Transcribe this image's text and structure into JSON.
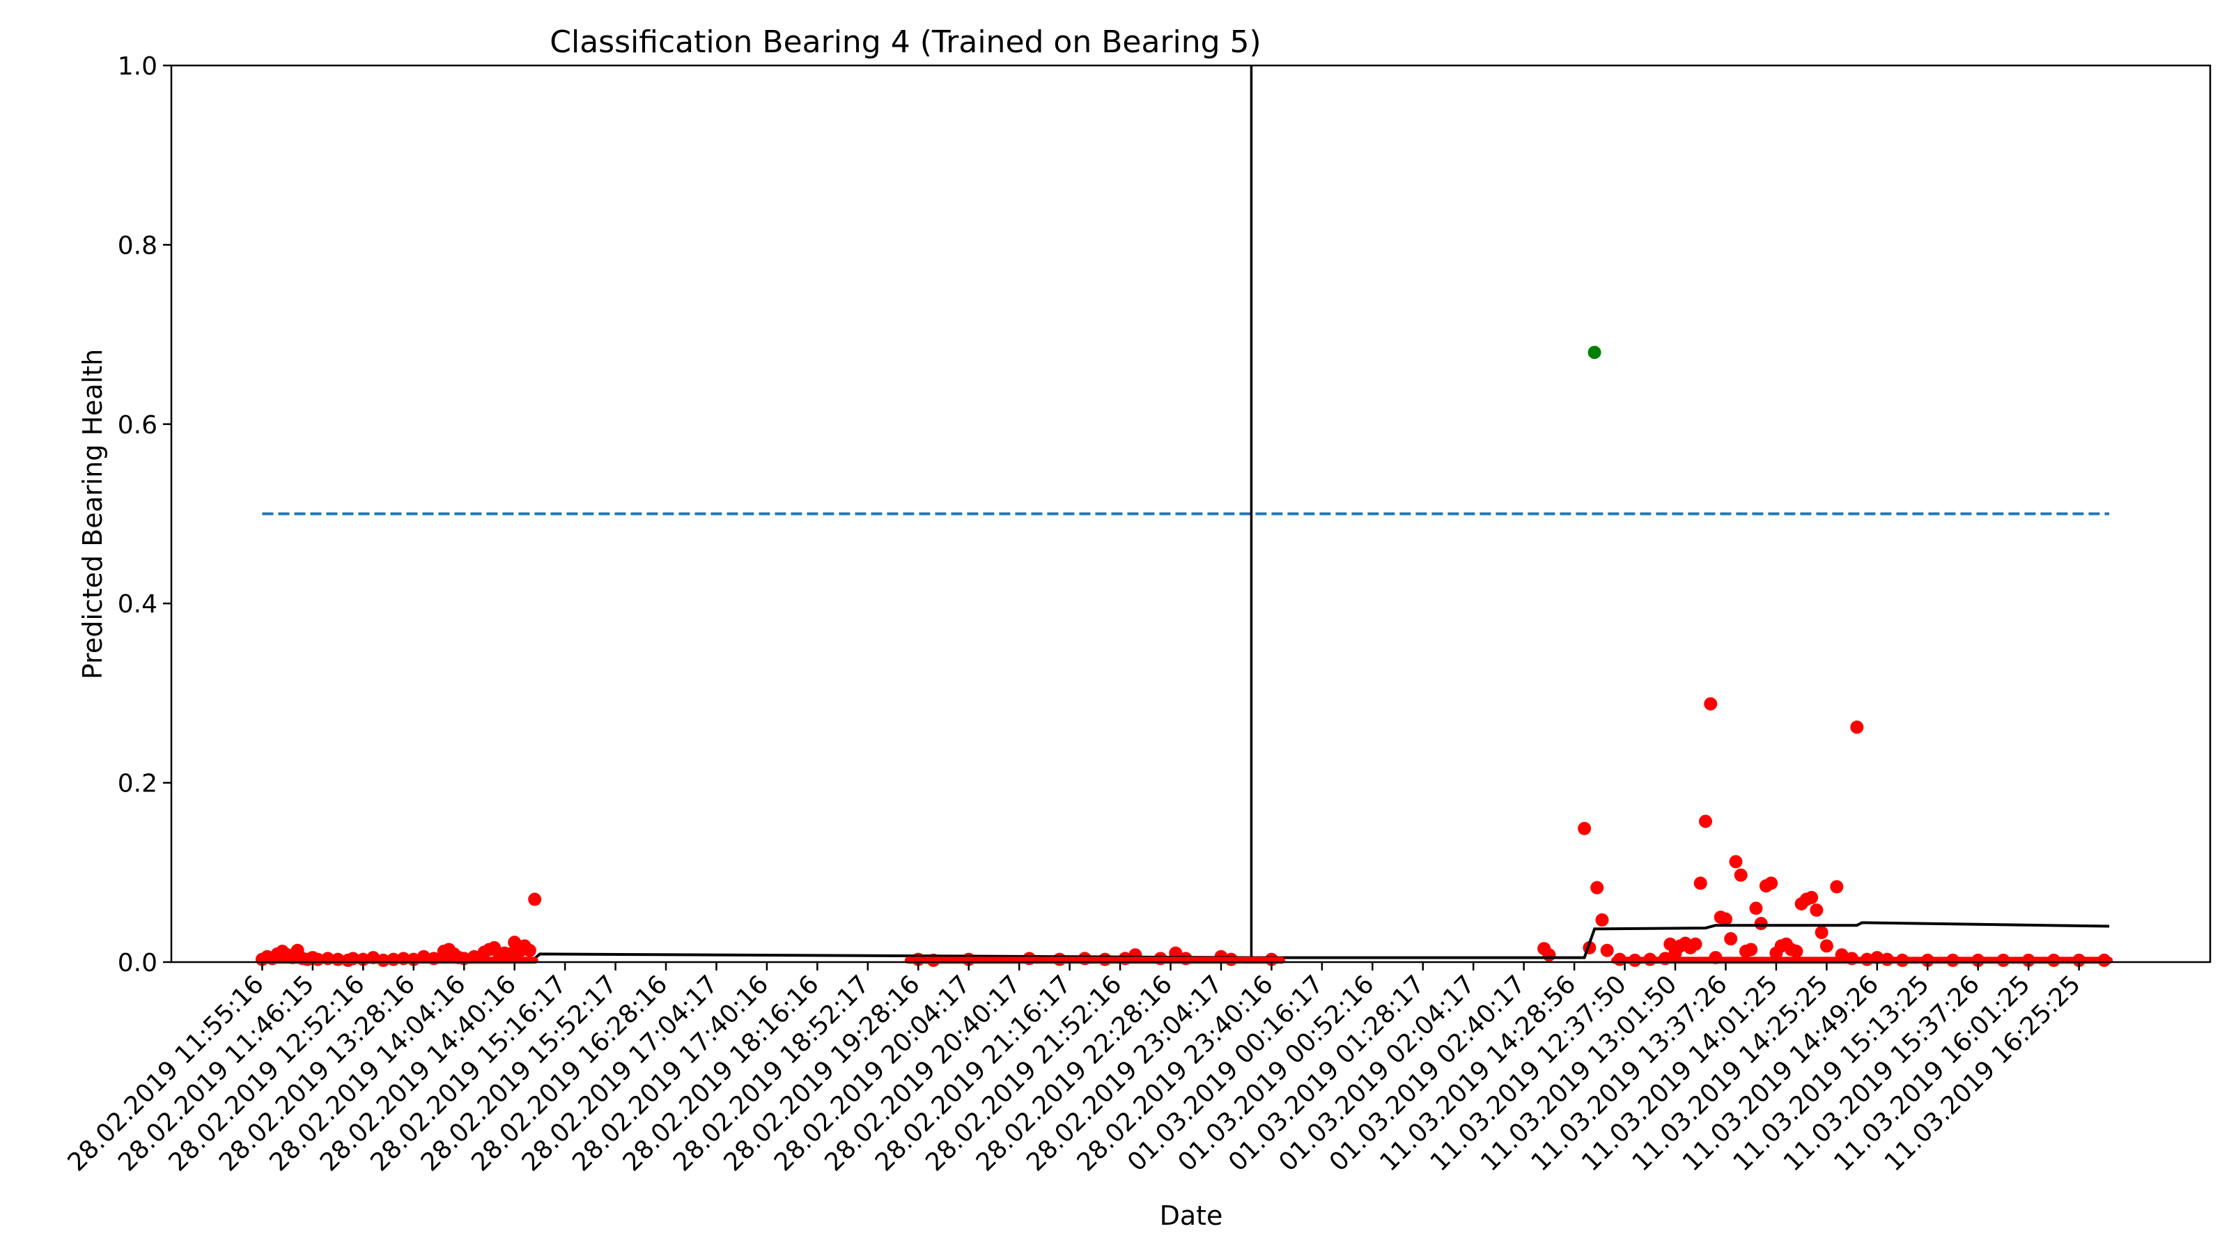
{
  "chart_data": {
    "type": "scatter",
    "title": "Classification Bearing 4 (Trained on Bearing 5)",
    "xlabel": "Date",
    "ylabel": "Predicted Bearing Health",
    "ylim": [
      0.0,
      1.0
    ],
    "y_ticks": [
      "0.0",
      "0.2",
      "0.4",
      "0.6",
      "0.8",
      "1.0"
    ],
    "x_ticks": [
      "28.02.2019 11:55:16",
      "28.02.2019 11:46:15",
      "28.02.2019 12:52:16",
      "28.02.2019 13:28:16",
      "28.02.2019 14:04:16",
      "28.02.2019 14:40:16",
      "28.02.2019 15:16:17",
      "28.02.2019 15:52:17",
      "28.02.2019 16:28:16",
      "28.02.2019 17:04:17",
      "28.02.2019 17:40:16",
      "28.02.2019 18:16:16",
      "28.02.2019 18:52:17",
      "28.02.2019 19:28:16",
      "28.02.2019 20:04:17",
      "28.02.2019 20:40:17",
      "28.02.2019 21:16:17",
      "28.02.2019 21:52:16",
      "28.02.2019 22:28:16",
      "28.02.2019 23:04:17",
      "28.02.2019 23:40:16",
      "01.03.2019 00:16:17",
      "01.03.2019 00:52:16",
      "01.03.2019 01:28:17",
      "01.03.2019 02:04:17",
      "01.03.2019 02:40:17",
      "11.03.2019 14:28:56",
      "11.03.2019 12:37:50",
      "11.03.2019 13:01:50",
      "11.03.2019 13:37:26",
      "11.03.2019 14:01:25",
      "11.03.2019 14:25:25",
      "11.03.2019 14:49:26",
      "11.03.2019 15:13:25",
      "11.03.2019 15:37:26",
      "11.03.2019 16:01:25",
      "11.03.2019 16:25:25"
    ],
    "x_range": [
      -1.8,
      38.6
    ],
    "grid": false,
    "threshold": {
      "y": 0.5,
      "x_start": 0,
      "x_end": 36.6,
      "color": "#1f77b4",
      "style": "dashed"
    },
    "vertical_line": {
      "x": 19.6,
      "color": "#000000"
    },
    "series": [
      {
        "color": "#ff0000",
        "points": [
          [
            0.0,
            0.003
          ],
          [
            0.1,
            0.006
          ],
          [
            0.2,
            0.004
          ],
          [
            0.3,
            0.009
          ],
          [
            0.4,
            0.012
          ],
          [
            0.5,
            0.008
          ],
          [
            0.6,
            0.005
          ],
          [
            0.7,
            0.013
          ],
          [
            0.8,
            0.004
          ],
          [
            0.9,
            0.003
          ],
          [
            1.0,
            0.005
          ],
          [
            1.1,
            0.003
          ],
          [
            1.3,
            0.004
          ],
          [
            1.5,
            0.003
          ],
          [
            1.7,
            0.002
          ],
          [
            1.8,
            0.004
          ],
          [
            2.0,
            0.003
          ],
          [
            2.2,
            0.005
          ],
          [
            2.4,
            0.002
          ],
          [
            2.6,
            0.003
          ],
          [
            2.8,
            0.004
          ],
          [
            3.0,
            0.003
          ],
          [
            3.2,
            0.006
          ],
          [
            3.4,
            0.004
          ],
          [
            3.6,
            0.012
          ],
          [
            3.7,
            0.014
          ],
          [
            3.8,
            0.009
          ],
          [
            3.9,
            0.005
          ],
          [
            4.0,
            0.004
          ],
          [
            4.2,
            0.006
          ],
          [
            4.4,
            0.011
          ],
          [
            4.5,
            0.014
          ],
          [
            4.6,
            0.016
          ],
          [
            4.7,
            0.008
          ],
          [
            4.8,
            0.01
          ],
          [
            4.9,
            0.009
          ],
          [
            5.0,
            0.022
          ],
          [
            5.1,
            0.012
          ],
          [
            5.2,
            0.018
          ],
          [
            5.3,
            0.013
          ],
          [
            5.4,
            0.07
          ],
          [
            13.0,
            0.003
          ],
          [
            13.3,
            0.002
          ],
          [
            14.0,
            0.003
          ],
          [
            15.2,
            0.004
          ],
          [
            15.8,
            0.003
          ],
          [
            16.3,
            0.004
          ],
          [
            16.7,
            0.003
          ],
          [
            17.1,
            0.004
          ],
          [
            17.3,
            0.008
          ],
          [
            17.8,
            0.004
          ],
          [
            18.1,
            0.01
          ],
          [
            18.3,
            0.004
          ],
          [
            19.0,
            0.006
          ],
          [
            19.2,
            0.003
          ],
          [
            20.0,
            0.003
          ],
          [
            25.4,
            0.015
          ],
          [
            25.5,
            0.008
          ],
          [
            26.2,
            0.149
          ],
          [
            26.3,
            0.016
          ],
          [
            26.45,
            0.083
          ],
          [
            26.55,
            0.047
          ],
          [
            26.65,
            0.013
          ],
          [
            26.9,
            0.003
          ],
          [
            27.2,
            0.002
          ],
          [
            27.5,
            0.003
          ],
          [
            27.8,
            0.004
          ],
          [
            28.0,
            0.01
          ],
          [
            27.9,
            0.02
          ],
          [
            28.1,
            0.018
          ],
          [
            28.2,
            0.021
          ],
          [
            28.3,
            0.016
          ],
          [
            28.4,
            0.02
          ],
          [
            28.5,
            0.088
          ],
          [
            28.6,
            0.157
          ],
          [
            28.7,
            0.288
          ],
          [
            28.8,
            0.005
          ],
          [
            28.9,
            0.05
          ],
          [
            29.0,
            0.048
          ],
          [
            29.1,
            0.026
          ],
          [
            29.2,
            0.112
          ],
          [
            29.3,
            0.097
          ],
          [
            29.4,
            0.012
          ],
          [
            29.5,
            0.014
          ],
          [
            29.6,
            0.06
          ],
          [
            29.7,
            0.043
          ],
          [
            29.8,
            0.085
          ],
          [
            29.9,
            0.088
          ],
          [
            30.0,
            0.01
          ],
          [
            30.1,
            0.018
          ],
          [
            30.2,
            0.02
          ],
          [
            30.3,
            0.014
          ],
          [
            30.4,
            0.012
          ],
          [
            30.5,
            0.065
          ],
          [
            30.6,
            0.07
          ],
          [
            30.7,
            0.072
          ],
          [
            30.8,
            0.058
          ],
          [
            30.9,
            0.033
          ],
          [
            31.0,
            0.018
          ],
          [
            31.2,
            0.084
          ],
          [
            31.3,
            0.008
          ],
          [
            31.6,
            0.262
          ],
          [
            31.5,
            0.004
          ],
          [
            31.8,
            0.003
          ],
          [
            32.0,
            0.005
          ],
          [
            32.2,
            0.003
          ],
          [
            32.5,
            0.002
          ],
          [
            33.0,
            0.002
          ],
          [
            33.5,
            0.002
          ],
          [
            34.0,
            0.002
          ],
          [
            34.5,
            0.002
          ],
          [
            35.0,
            0.002
          ],
          [
            35.5,
            0.002
          ],
          [
            36.0,
            0.002
          ],
          [
            36.5,
            0.002
          ]
        ]
      },
      {
        "color": "#008000",
        "points": [
          [
            26.4,
            0.68
          ]
        ]
      },
      {
        "color": "#000000",
        "style": "line",
        "points": [
          [
            0.3,
            0.002
          ],
          [
            5.4,
            0.004
          ],
          [
            5.5,
            0.009
          ],
          [
            19.7,
            0.005
          ],
          [
            26.2,
            0.005
          ],
          [
            26.4,
            0.037
          ],
          [
            28.6,
            0.038
          ],
          [
            28.8,
            0.041
          ],
          [
            31.6,
            0.041
          ],
          [
            31.7,
            0.044
          ],
          [
            36.6,
            0.04
          ]
        ]
      }
    ]
  }
}
